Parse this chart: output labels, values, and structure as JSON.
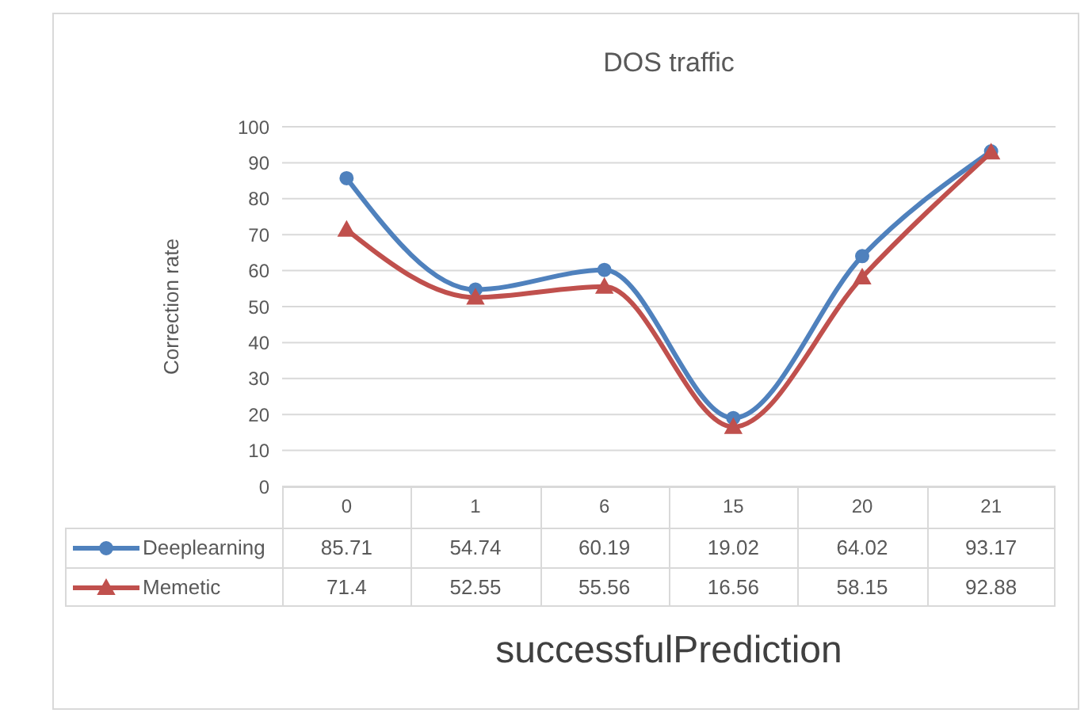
{
  "chart_data": {
    "type": "line",
    "title": "DOS traffic",
    "xlabel": "successfulPrediction",
    "ylabel": "Correction rate",
    "categories": [
      "0",
      "1",
      "6",
      "15",
      "20",
      "21"
    ],
    "series": [
      {
        "name": "Deeplearning",
        "color": "#4f81bd",
        "marker": "circle",
        "values": [
          85.71,
          54.74,
          60.19,
          19.02,
          64.02,
          93.17
        ]
      },
      {
        "name": "Memetic",
        "color": "#c0504d",
        "marker": "triangle",
        "values": [
          71.4,
          52.55,
          55.56,
          16.56,
          58.15,
          92.88
        ]
      }
    ],
    "ylim": [
      0,
      100
    ],
    "yticks": [
      0,
      10,
      20,
      30,
      40,
      50,
      60,
      70,
      80,
      90,
      100
    ],
    "grid": "y",
    "legend": "bottom",
    "data_labels": true,
    "line_style": "solid"
  }
}
